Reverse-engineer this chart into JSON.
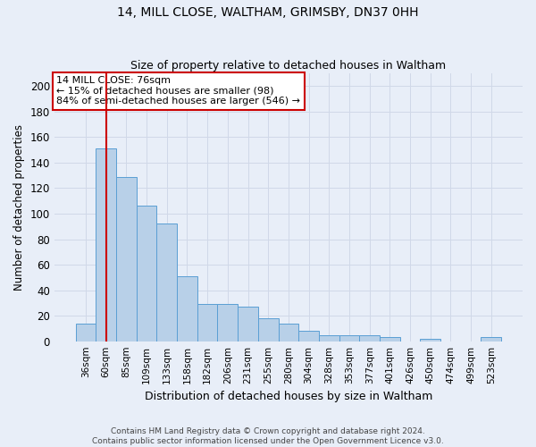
{
  "title1": "14, MILL CLOSE, WALTHAM, GRIMSBY, DN37 0HH",
  "title2": "Size of property relative to detached houses in Waltham",
  "xlabel": "Distribution of detached houses by size in Waltham",
  "ylabel": "Number of detached properties",
  "categories": [
    "36sqm",
    "60sqm",
    "85sqm",
    "109sqm",
    "133sqm",
    "158sqm",
    "182sqm",
    "206sqm",
    "231sqm",
    "255sqm",
    "280sqm",
    "304sqm",
    "328sqm",
    "353sqm",
    "377sqm",
    "401sqm",
    "426sqm",
    "450sqm",
    "474sqm",
    "499sqm",
    "523sqm"
  ],
  "values": [
    14,
    151,
    129,
    106,
    92,
    51,
    29,
    29,
    27,
    18,
    14,
    8,
    5,
    5,
    5,
    3,
    0,
    2,
    0,
    0,
    3
  ],
  "bar_color": "#b8d0e8",
  "bar_edge_color": "#5a9fd4",
  "grid_color": "#d0d8e8",
  "annotation_line1": "14 MILL CLOSE: 76sqm",
  "annotation_line2": "← 15% of detached houses are smaller (98)",
  "annotation_line3": "84% of semi-detached houses are larger (546) →",
  "annotation_box_color": "#ffffff",
  "annotation_box_edge_color": "#cc0000",
  "vline_x": 1.0,
  "vline_color": "#cc0000",
  "ylim": [
    0,
    210
  ],
  "yticks": [
    0,
    20,
    40,
    60,
    80,
    100,
    120,
    140,
    160,
    180,
    200
  ],
  "footer_text": "Contains HM Land Registry data © Crown copyright and database right 2024.\nContains public sector information licensed under the Open Government Licence v3.0.",
  "bg_color": "#e8eef8"
}
